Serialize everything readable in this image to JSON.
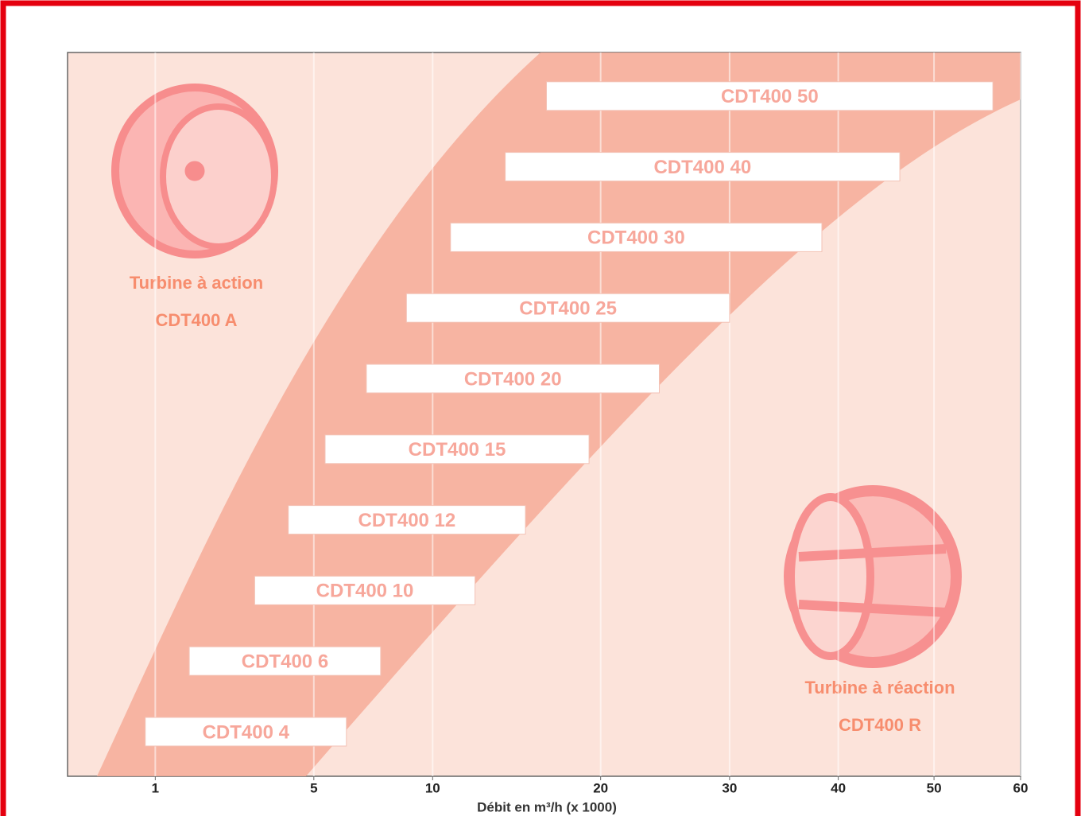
{
  "chart_data": {
    "type": "range-bar",
    "categories": [
      "CDT400 4",
      "CDT400 6",
      "CDT400 10",
      "CDT400 12",
      "CDT400 15",
      "CDT400 20",
      "CDT400 25",
      "CDT400 30",
      "CDT400 40",
      "CDT400 50"
    ],
    "values": [
      [
        0.85,
        6.2
      ],
      [
        1.6,
        7.6
      ],
      [
        3.15,
        12.2
      ],
      [
        4.15,
        15.1
      ],
      [
        5.4,
        19.2
      ],
      [
        7.0,
        24.3
      ],
      [
        8.75,
        30
      ],
      [
        10.9,
        38.4
      ],
      [
        13.9,
        46.3
      ],
      [
        16.4,
        56.7
      ]
    ],
    "color": "#ffffff",
    "label_color": "#f7a79b",
    "xlim": [
      0.1,
      60
    ],
    "xticks": [
      1,
      5,
      10,
      20,
      30,
      40,
      50,
      60
    ],
    "xscale": "sqrt",
    "grid": true,
    "x_label": "Débit en m³/h (x 1000)",
    "annotations": [
      "Turbine à action",
      "CDT400 A",
      "Turbine à réaction",
      "CDT400 R"
    ]
  }
}
